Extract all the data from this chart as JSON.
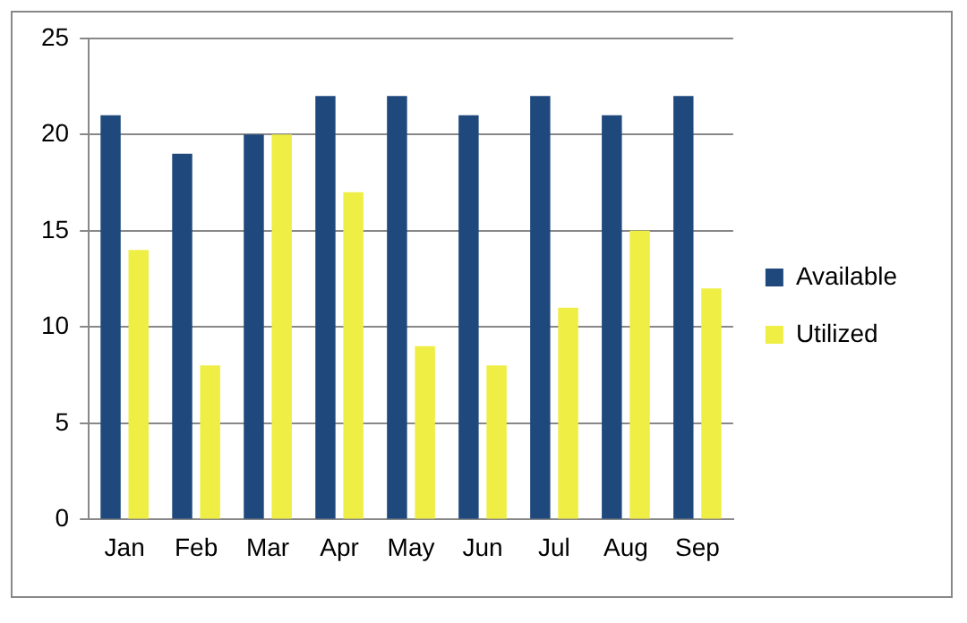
{
  "chart_data": {
    "type": "bar",
    "categories": [
      "Jan",
      "Feb",
      "Mar",
      "Apr",
      "May",
      "Jun",
      "Jul",
      "Aug",
      "Sep"
    ],
    "series": [
      {
        "name": "Available",
        "color": "#1f497d",
        "values": [
          21,
          19,
          20,
          22,
          22,
          21,
          22,
          21,
          22
        ]
      },
      {
        "name": "Utilized",
        "color": "#eeee44",
        "values": [
          14,
          8,
          20,
          17,
          9,
          8,
          11,
          15,
          12
        ]
      }
    ],
    "ylim": [
      0,
      25
    ],
    "yticks": [
      0,
      5,
      10,
      15,
      20,
      25
    ],
    "grid": "y",
    "legend": "right"
  }
}
